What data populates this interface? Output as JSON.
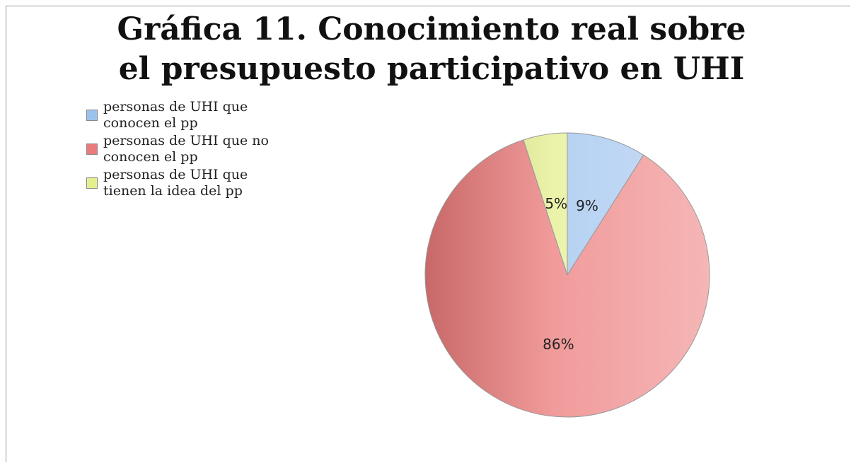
{
  "chart_data": {
    "type": "pie",
    "title": "Gráfica 11. Conocimiento real sobre el presupuesto participativo en UHI",
    "categories": [
      "personas de UHI que conocen el pp",
      "personas de UHI que no conocen el pp",
      "personas de UHI que tienen la idea del pp"
    ],
    "values": [
      9,
      86,
      5
    ],
    "value_labels": [
      "9%",
      "86%",
      "5%"
    ],
    "colors": [
      "#9cc2ee",
      "#ec7a7a",
      "#e4ef8e"
    ],
    "legend": "left"
  }
}
